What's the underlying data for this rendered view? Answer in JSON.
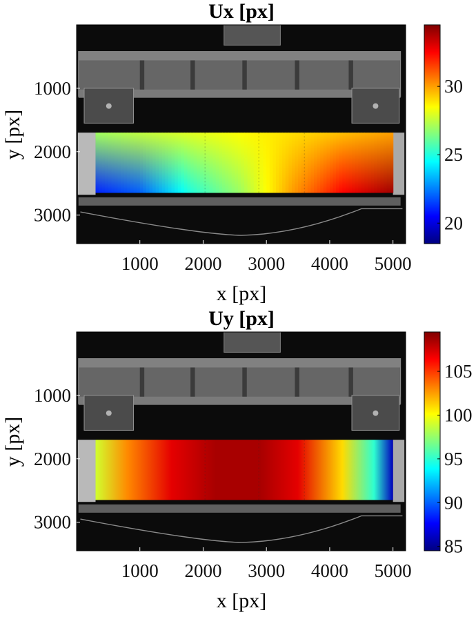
{
  "chart_data": [
    {
      "type": "heatmap",
      "title": "Ux [px]",
      "xlabel": "x [px]",
      "ylabel": "y [px]",
      "xlim": [
        0,
        5200
      ],
      "ylim": [
        3450,
        0
      ],
      "xticks": [
        1000,
        2000,
        3000,
        4000,
        5000
      ],
      "yticks": [
        1000,
        2000,
        3000
      ],
      "colorbar": {
        "min": 18.5,
        "max": 34.5,
        "ticks": [
          20,
          25,
          30
        ],
        "colormap": "jet"
      },
      "field": {
        "x_range": [
          300,
          5000
        ],
        "y_range": [
          1700,
          2650
        ],
        "x": [
          300,
          1000,
          1800,
          2600,
          3400,
          4200,
          5000
        ],
        "y_top": [
          27,
          27.5,
          28,
          28.5,
          29,
          29.5,
          30
        ],
        "y_bottom": [
          21,
          22,
          25,
          27,
          30,
          32.5,
          34
        ]
      }
    },
    {
      "type": "heatmap",
      "title": "Uy [px]",
      "xlabel": "x [px]",
      "ylabel": "y [px]",
      "xlim": [
        0,
        5200
      ],
      "ylim": [
        3450,
        0
      ],
      "xticks": [
        1000,
        2000,
        3000,
        4000,
        5000
      ],
      "yticks": [
        1000,
        2000,
        3000
      ],
      "colorbar": {
        "min": 84.5,
        "max": 109.5,
        "ticks": [
          85,
          90,
          95,
          100,
          105
        ],
        "colormap": "jet"
      },
      "field": {
        "x_range": [
          300,
          5000
        ],
        "y_range": [
          1700,
          2650
        ],
        "x": [
          300,
          800,
          1500,
          2200,
          2900,
          3500,
          4200,
          4700,
          5000
        ],
        "values": [
          99,
          103,
          107,
          108.5,
          108.5,
          107,
          101,
          95,
          86
        ]
      }
    }
  ],
  "colors": {
    "background_photo": "#0b0b0b",
    "beam_gray": "#6d6d6d",
    "specimen_edge": "#bdbdbd"
  }
}
